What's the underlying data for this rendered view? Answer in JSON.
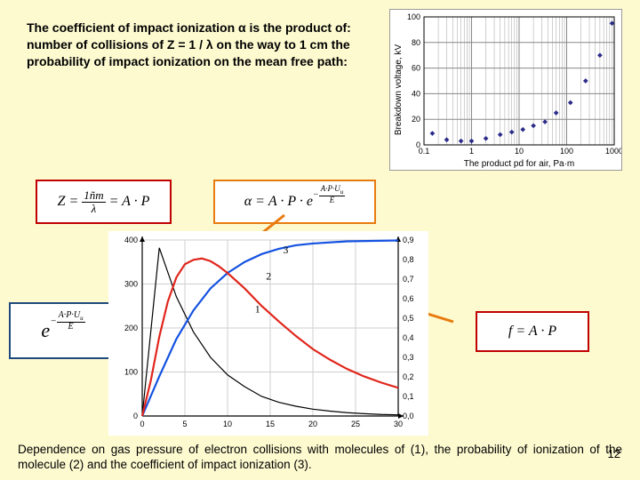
{
  "intro": "The coefficient of impact ionization α is the product of:\nnumber of collisions of Z = 1 / λ on the way to 1 cm the probability of impact ionization on the mean free path:",
  "formulas": {
    "z": "Z = 1ñm / λ = A · P",
    "alpha": "α = A · P · e^{−A·P·Uᵤ / E}",
    "exp_term": "e^{−A·P·Uᵤ / E}",
    "f": "f = A · P"
  },
  "caption": "Dependence on gas pressure of electron collisions with molecules of (1), the probability of ionization of the molecule (2) and the coefficient of impact ionization (3).",
  "page_number": "12",
  "top_chart": {
    "type": "scatter-log",
    "ylabel": "Breakdown voltage, kV",
    "xlabel": "The product pd for air, Pa·m",
    "ylim": [
      0,
      100
    ],
    "ytick_step": 20,
    "xticks": [
      0.1,
      1,
      10,
      100,
      1000
    ],
    "bg": "#ffffff",
    "grid": "#888",
    "marker_color": "#2a2a8a",
    "marker_size": 4,
    "points": [
      [
        0.15,
        9
      ],
      [
        0.3,
        4
      ],
      [
        0.6,
        3
      ],
      [
        1.0,
        3
      ],
      [
        2,
        5
      ],
      [
        4,
        8
      ],
      [
        7,
        10
      ],
      [
        12,
        12
      ],
      [
        20,
        15
      ],
      [
        35,
        18
      ],
      [
        60,
        25
      ],
      [
        120,
        33
      ],
      [
        250,
        50
      ],
      [
        500,
        70
      ],
      [
        900,
        95
      ]
    ]
  },
  "main_chart": {
    "type": "line",
    "bg": "#ffffff",
    "axis_color": "#000",
    "grid": "#cfcfcf",
    "xlim": [
      0,
      30
    ],
    "xtick_step": 5,
    "left_ylim": [
      0,
      400
    ],
    "left_ytick_step": 100,
    "right_ylim": [
      0.0,
      0.9
    ],
    "right_ytick_step": 0.1,
    "series": [
      {
        "id": 1,
        "label": "1",
        "color": "#000000",
        "width": 1.2,
        "axis": "right",
        "points": [
          [
            0,
            0
          ],
          [
            2,
            0.86
          ],
          [
            4,
            0.61
          ],
          [
            6,
            0.43
          ],
          [
            8,
            0.3
          ],
          [
            10,
            0.21
          ],
          [
            12,
            0.15
          ],
          [
            14,
            0.1
          ],
          [
            16,
            0.07
          ],
          [
            18,
            0.05
          ],
          [
            20,
            0.035
          ],
          [
            22,
            0.025
          ],
          [
            24,
            0.017
          ],
          [
            26,
            0.012
          ],
          [
            28,
            0.008
          ],
          [
            30,
            0.006
          ]
        ]
      },
      {
        "id": 2,
        "label": "2",
        "color": "#1452e0",
        "width": 2.2,
        "axis": "left",
        "points": [
          [
            0,
            0
          ],
          [
            2,
            90
          ],
          [
            4,
            175
          ],
          [
            6,
            240
          ],
          [
            8,
            290
          ],
          [
            10,
            325
          ],
          [
            12,
            350
          ],
          [
            14,
            368
          ],
          [
            16,
            380
          ],
          [
            18,
            388
          ],
          [
            20,
            392
          ],
          [
            24,
            397
          ],
          [
            30,
            399
          ]
        ]
      },
      {
        "id": 3,
        "label": "3",
        "color": "#e0261c",
        "width": 2.2,
        "axis": "left",
        "points": [
          [
            0,
            0
          ],
          [
            1,
            80
          ],
          [
            2,
            180
          ],
          [
            3,
            260
          ],
          [
            4,
            315
          ],
          [
            5,
            345
          ],
          [
            6,
            355
          ],
          [
            7,
            358
          ],
          [
            8,
            352
          ],
          [
            9,
            340
          ],
          [
            10,
            325
          ],
          [
            12,
            290
          ],
          [
            14,
            250
          ],
          [
            16,
            215
          ],
          [
            18,
            182
          ],
          [
            20,
            152
          ],
          [
            22,
            128
          ],
          [
            24,
            107
          ],
          [
            26,
            90
          ],
          [
            28,
            76
          ],
          [
            30,
            64
          ]
        ]
      }
    ],
    "annotations": [
      {
        "text": "3",
        "x": 16.5,
        "y_left": 370,
        "color": "#e0261c"
      },
      {
        "text": "2",
        "x": 14.5,
        "y_left": 310,
        "color": "#1452e0"
      },
      {
        "text": "1",
        "x": 13.2,
        "y_left": 235,
        "color": "#000"
      }
    ]
  },
  "arrows": {
    "color": "#e87b10",
    "a1": {
      "from": [
        320,
        242
      ],
      "to": [
        270,
        282
      ]
    },
    "a2": {
      "from": [
        510,
        362
      ],
      "to": [
        445,
        342
      ]
    }
  }
}
